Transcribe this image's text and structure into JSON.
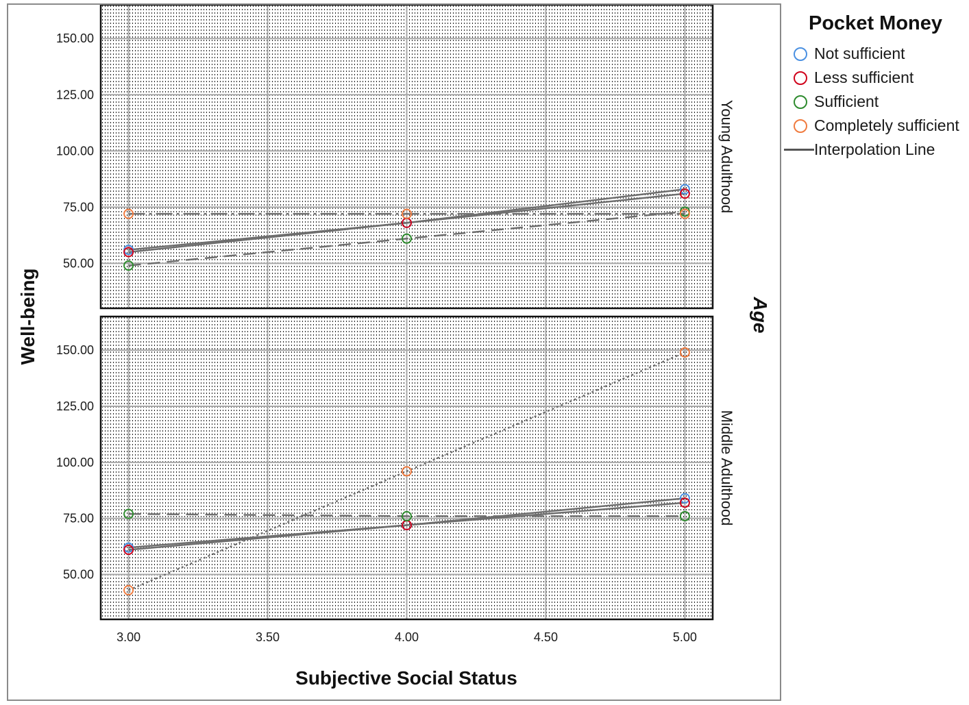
{
  "chart_data": {
    "type": "line",
    "xlabel": "Subjective Social Status",
    "ylabel": "Well-being",
    "xlim": [
      2.9,
      5.1
    ],
    "ylim": [
      30,
      165
    ],
    "x_ticks": [
      "3.00",
      "3.50",
      "4.00",
      "4.50",
      "5.00"
    ],
    "x_tick_values": [
      3,
      3.5,
      4,
      4.5,
      5
    ],
    "y_ticks": [
      "50.00",
      "75.00",
      "100.00",
      "125.00",
      "150.00"
    ],
    "y_tick_values": [
      50,
      75,
      100,
      125,
      150
    ],
    "grid": true,
    "facet_title": "Age",
    "legend": {
      "title": "Pocket Money",
      "position": "right",
      "entries": [
        {
          "label": "Not sufficient",
          "color": "#4a90e2"
        },
        {
          "label": "Less sufficient",
          "color": "#d0021b"
        },
        {
          "label": "Sufficient",
          "color": "#2e8b2e"
        },
        {
          "label": "Completely sufficient",
          "color": "#f07b3f"
        }
      ],
      "line_label": "Interpolation Line"
    },
    "panels": [
      {
        "label": "Young Adulthood",
        "x": [
          3,
          4,
          5
        ],
        "series": [
          {
            "name": "Not sufficient",
            "color": "#4a90e2",
            "values": [
              56,
              68,
              83
            ],
            "dash": ""
          },
          {
            "name": "Less sufficient",
            "color": "#d0021b",
            "values": [
              55,
              68,
              81
            ],
            "dash": ""
          },
          {
            "name": "Sufficient",
            "color": "#2e8b2e",
            "values": [
              49,
              61,
              73
            ],
            "dash": "18,10"
          },
          {
            "name": "Completely sufficient",
            "color": "#f07b3f",
            "values": [
              72,
              72,
              72
            ],
            "dash": "24,6,4,6"
          }
        ]
      },
      {
        "label": "Middle Adulthood",
        "x": [
          3,
          4,
          5
        ],
        "series": [
          {
            "name": "Not sufficient",
            "color": "#4a90e2",
            "values": [
              62,
              72,
              84
            ],
            "dash": ""
          },
          {
            "name": "Less sufficient",
            "color": "#d0021b",
            "values": [
              61,
              72,
              82
            ],
            "dash": ""
          },
          {
            "name": "Sufficient",
            "color": "#2e8b2e",
            "values": [
              77,
              76,
              76
            ],
            "dash": "18,10"
          },
          {
            "name": "Completely sufficient",
            "color": "#f07b3f",
            "values": [
              43,
              96,
              149
            ],
            "dash": "3,4"
          }
        ]
      }
    ]
  }
}
